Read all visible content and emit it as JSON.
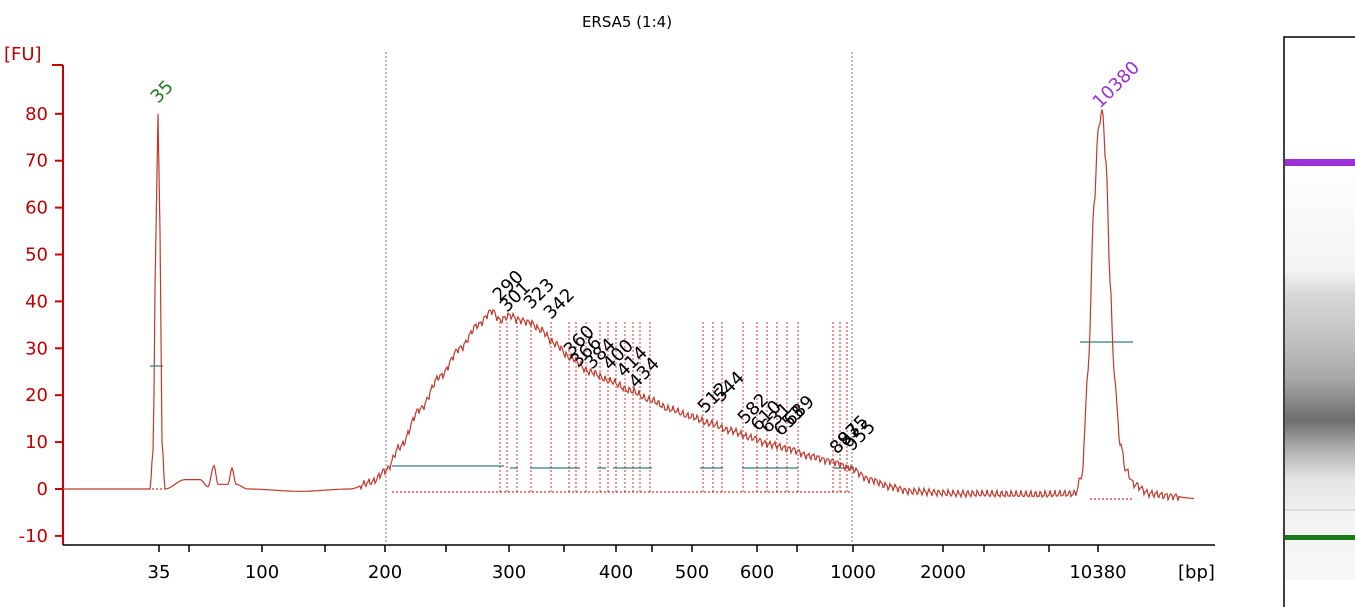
{
  "chart_data": {
    "type": "line",
    "title": "ERSA5 (1:4)",
    "ylabel": "[FU]",
    "xlabel": "[bp]",
    "ylim": [
      -10,
      90
    ],
    "yticks": [
      "-10",
      "0",
      "10",
      "20",
      "30",
      "40",
      "50",
      "60",
      "70",
      "80"
    ],
    "xticks": [
      "35",
      "100",
      "200",
      "300",
      "400",
      "500",
      "600",
      "1000",
      "2000",
      "10380"
    ],
    "grid": false,
    "colors": {
      "axis": "#cc0000",
      "trace": "#c0392b",
      "marker_lower": "#1f7a1f",
      "marker_upper": "#9b30d9",
      "region_line": "#2f7f7f"
    },
    "markers": [
      {
        "label": "35",
        "x": "35",
        "y": 80
      },
      {
        "label": "10380",
        "x": "10380",
        "y": 81
      }
    ],
    "peak_labels": [
      "290",
      "301",
      "323",
      "342",
      "360",
      "366",
      "384",
      "400",
      "414",
      "434",
      "512",
      "544",
      "582",
      "610",
      "631",
      "653",
      "689",
      "887",
      "935",
      "955"
    ],
    "gel_lane": {
      "bands": [
        "marker-upper",
        "smear",
        "marker-lower"
      ]
    }
  }
}
